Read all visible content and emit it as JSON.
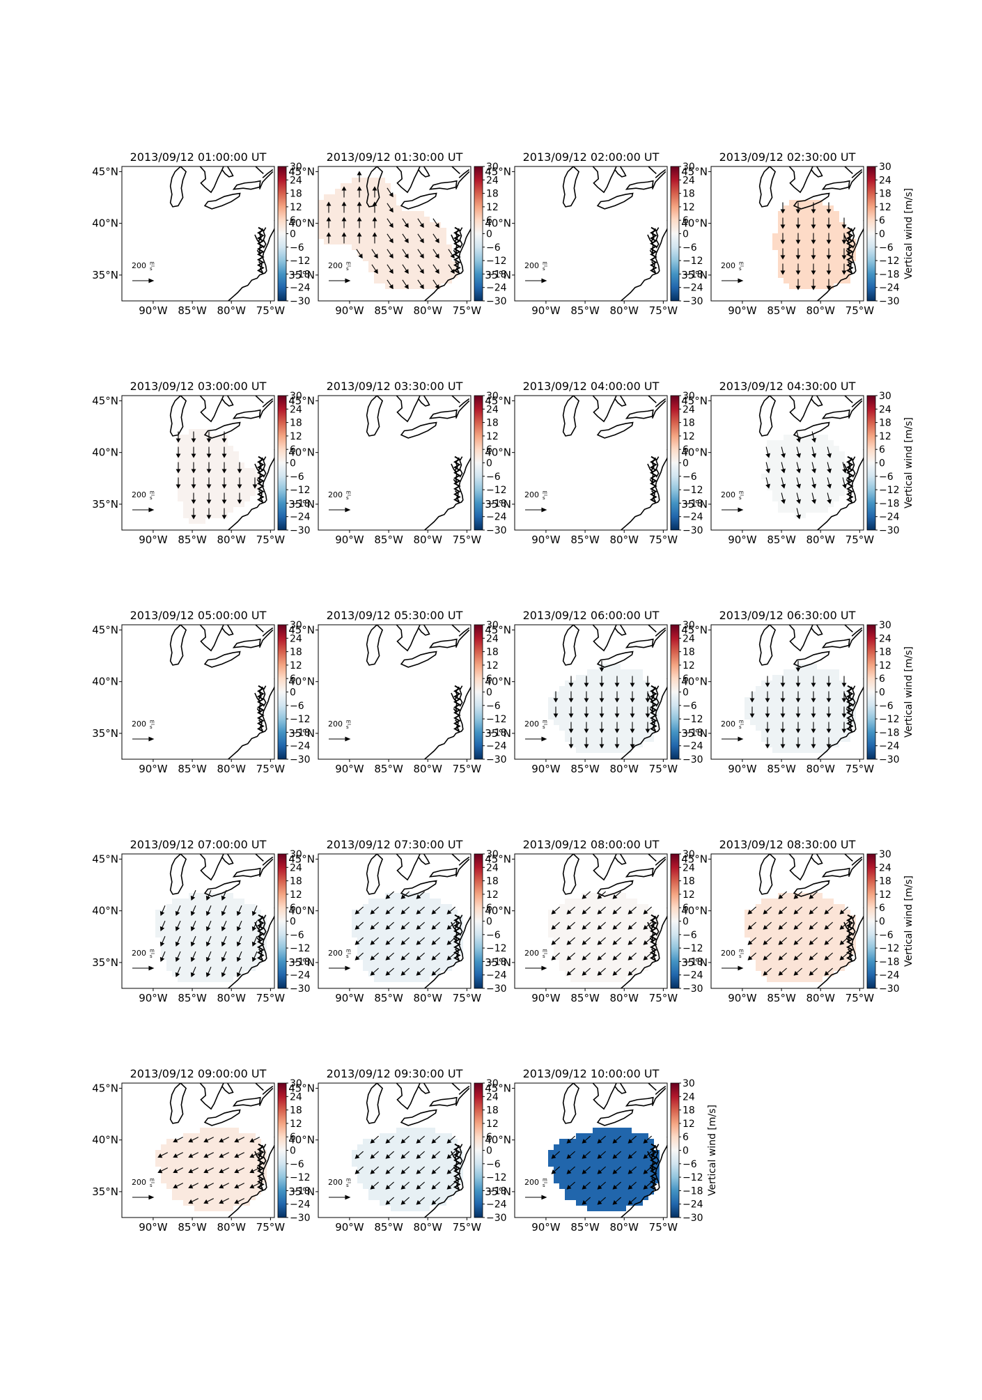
{
  "chart_data": {
    "type": "heatmap",
    "description_units": {
      "colorbar_label": "Vertical wind [m/s]",
      "colorbar_ticks": [
        "30",
        "24",
        "18",
        "12",
        "6",
        "0",
        "−6",
        "−12",
        "−18",
        "−24",
        "−30"
      ],
      "colorbar_range": [
        -30,
        30
      ],
      "colormap": "RdBu_r"
    },
    "lat_ticks": [
      "45°N",
      "40°N",
      "35°N"
    ],
    "lon_ticks": [
      "90°W",
      "85°W",
      "80°W",
      "75°W"
    ],
    "lat_range": [
      32.5,
      45.5
    ],
    "lon_range": [
      -94,
      -74.5
    ],
    "reference_vector": {
      "label": "200 m/s",
      "magnitude": 200
    },
    "panels": [
      {
        "title": "2013/09/12 01:00:00 UT",
        "value": null,
        "colorbar_labelled": false
      },
      {
        "title": "2013/09/12 01:30:00 UT",
        "value": 3,
        "direction": "north-southeast",
        "colorbar_labelled": false,
        "region": "north"
      },
      {
        "title": "2013/09/12 02:00:00 UT",
        "value": null,
        "colorbar_labelled": false
      },
      {
        "title": "2013/09/12 02:30:00 UT",
        "value": 6,
        "direction": "south",
        "colorbar_labelled": true
      },
      {
        "title": "2013/09/12 03:00:00 UT",
        "value": 1,
        "direction": "south",
        "colorbar_labelled": false
      },
      {
        "title": "2013/09/12 03:30:00 UT",
        "value": null,
        "colorbar_labelled": false
      },
      {
        "title": "2013/09/12 04:00:00 UT",
        "value": null,
        "colorbar_labelled": false
      },
      {
        "title": "2013/09/12 04:30:00 UT",
        "value": -0.5,
        "direction": "south-southeast",
        "colorbar_labelled": true
      },
      {
        "title": "2013/09/12 05:00:00 UT",
        "value": null,
        "colorbar_labelled": false
      },
      {
        "title": "2013/09/12 05:30:00 UT",
        "value": null,
        "colorbar_labelled": false
      },
      {
        "title": "2013/09/12 06:00:00 UT",
        "value": -1.5,
        "direction": "south",
        "colorbar_labelled": false
      },
      {
        "title": "2013/09/12 06:30:00 UT",
        "value": -1.5,
        "direction": "south",
        "colorbar_labelled": true
      },
      {
        "title": "2013/09/12 07:00:00 UT",
        "value": -1.5,
        "direction": "southwest-steep",
        "colorbar_labelled": false
      },
      {
        "title": "2013/09/12 07:30:00 UT",
        "value": -2,
        "direction": "southwest",
        "colorbar_labelled": false
      },
      {
        "title": "2013/09/12 08:00:00 UT",
        "value": 0.5,
        "direction": "southwest",
        "colorbar_labelled": false
      },
      {
        "title": "2013/09/12 08:30:00 UT",
        "value": 4,
        "direction": "southwest",
        "colorbar_labelled": true
      },
      {
        "title": "2013/09/12 09:00:00 UT",
        "value": 3,
        "direction": "southwest-shallow",
        "colorbar_labelled": false
      },
      {
        "title": "2013/09/12 09:30:00 UT",
        "value": -2.5,
        "direction": "southwest",
        "colorbar_labelled": false
      },
      {
        "title": "2013/09/12 10:00:00 UT",
        "value": -24,
        "direction": "southwest",
        "colorbar_labelled": true
      }
    ]
  }
}
